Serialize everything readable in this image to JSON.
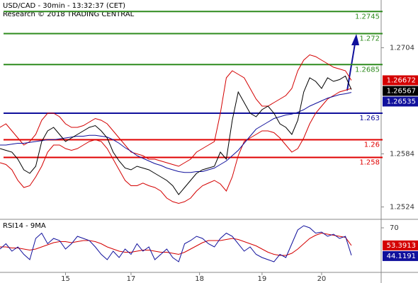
{
  "chart_data": [
    {
      "type": "line",
      "title": "USD/CAD - 30min - 13:32:37 (CET)",
      "subtitle": "Research © 2018 TRADING CENTRAL",
      "x": [
        0,
        1,
        2,
        3,
        4,
        5,
        6,
        7,
        8,
        9,
        10,
        11,
        12,
        13,
        14,
        15,
        16,
        17,
        18,
        19,
        20,
        21,
        22,
        23,
        24,
        25,
        26,
        27,
        28,
        29,
        30,
        31,
        32,
        33,
        34,
        35,
        36,
        37,
        38,
        39,
        40,
        41,
        42,
        43,
        44,
        45,
        46,
        47,
        48,
        49,
        50,
        51,
        52,
        53,
        54,
        55,
        56,
        57,
        58,
        59
      ],
      "xlim": [
        0,
        64
      ],
      "ylim": [
        1.251,
        1.2758
      ],
      "yticks": [
        1.2704,
        1.2584,
        1.2524
      ],
      "series": [
        {
          "color": "#d40000",
          "box": true,
          "values": [
            1.2614,
            1.2618,
            1.261,
            1.2602,
            1.2594,
            1.2598,
            1.2606,
            1.2622,
            1.263,
            1.263,
            1.2626,
            1.2618,
            1.2614,
            1.2614,
            1.2616,
            1.262,
            1.2624,
            1.2622,
            1.2618,
            1.261,
            1.2602,
            1.2594,
            1.2586,
            1.2584,
            1.2582,
            1.2578,
            1.2578,
            1.2576,
            1.2574,
            1.2572,
            1.257,
            1.2574,
            1.2578,
            1.2586,
            1.259,
            1.2594,
            1.2598,
            1.263,
            1.267,
            1.2678,
            1.2674,
            1.267,
            1.2658,
            1.2646,
            1.2638,
            1.2638,
            1.2642,
            1.2646,
            1.265,
            1.2658,
            1.2678,
            1.269,
            1.2696,
            1.2694,
            1.269,
            1.2686,
            1.2682,
            1.268,
            1.2678,
            1.26672
          ]
        },
        {
          "color": "#d40000",
          "values": [
            1.2574,
            1.2572,
            1.2566,
            1.2554,
            1.2546,
            1.2548,
            1.2558,
            1.257,
            1.2586,
            1.2594,
            1.2594,
            1.259,
            1.2588,
            1.259,
            1.2594,
            1.2598,
            1.26,
            1.2598,
            1.259,
            1.2578,
            1.2566,
            1.2554,
            1.2548,
            1.2548,
            1.2551,
            1.2548,
            1.2546,
            1.2542,
            1.2534,
            1.253,
            1.2528,
            1.253,
            1.2534,
            1.2542,
            1.2548,
            1.2551,
            1.2554,
            1.255,
            1.2542,
            1.2558,
            1.2582,
            1.2598,
            1.2602,
            1.2606,
            1.261,
            1.261,
            1.2608,
            1.2602,
            1.2594,
            1.2586,
            1.259,
            1.2602,
            1.2618,
            1.263,
            1.2638,
            1.2646,
            1.265,
            1.2654,
            1.2656,
            1.2658
          ]
        },
        {
          "color": "#10109c",
          "box": true,
          "values": [
            1.2594,
            1.2594,
            1.2595,
            1.2596,
            1.2596,
            1.2597,
            1.2598,
            1.2599,
            1.26,
            1.26,
            1.2601,
            1.2602,
            1.2603,
            1.2604,
            1.2604,
            1.2605,
            1.2605,
            1.2604,
            1.2603,
            1.26,
            1.2596,
            1.2591,
            1.2587,
            1.2582,
            1.2579,
            1.2576,
            1.2573,
            1.2571,
            1.2568,
            1.2566,
            1.2564,
            1.2563,
            1.2563,
            1.2564,
            1.2564,
            1.2566,
            1.2568,
            1.2572,
            1.2576,
            1.2582,
            1.2588,
            1.2596,
            1.2604,
            1.2612,
            1.2616,
            1.262,
            1.2624,
            1.2626,
            1.2628,
            1.2629,
            1.2631,
            1.2634,
            1.2638,
            1.2641,
            1.2644,
            1.2647,
            1.2649,
            1.2651,
            1.2652,
            1.26535
          ]
        },
        {
          "color": "#000000",
          "box": true,
          "values": [
            1.259,
            1.2588,
            1.2586,
            1.2578,
            1.2566,
            1.2562,
            1.257,
            1.2598,
            1.261,
            1.2614,
            1.2606,
            1.2598,
            1.2602,
            1.2606,
            1.261,
            1.2614,
            1.2616,
            1.261,
            1.2602,
            1.2586,
            1.2576,
            1.2568,
            1.2566,
            1.257,
            1.2568,
            1.2566,
            1.2562,
            1.2558,
            1.2554,
            1.2548,
            1.2538,
            1.2546,
            1.2554,
            1.2562,
            1.2566,
            1.2568,
            1.257,
            1.2586,
            1.2578,
            1.2622,
            1.2654,
            1.2642,
            1.263,
            1.2626,
            1.2634,
            1.2638,
            1.263,
            1.2618,
            1.2614,
            1.2606,
            1.2622,
            1.2654,
            1.267,
            1.2666,
            1.2658,
            1.267,
            1.2666,
            1.2668,
            1.2672,
            1.26567
          ]
        }
      ],
      "levels": [
        {
          "value": 1.2745,
          "color": "#2e8b1e"
        },
        {
          "value": 1.272,
          "color": "#2e8b1e"
        },
        {
          "value": 1.2685,
          "color": "#2e8b1e"
        },
        {
          "value": 1.263,
          "color": "#10109c"
        },
        {
          "value": 1.26,
          "color": "#e00000"
        },
        {
          "value": 1.258,
          "color": "#e00000"
        }
      ]
    },
    {
      "type": "line",
      "title": "RSI14 - 9MA",
      "x": [
        0,
        1,
        2,
        3,
        4,
        5,
        6,
        7,
        8,
        9,
        10,
        11,
        12,
        13,
        14,
        15,
        16,
        17,
        18,
        19,
        20,
        21,
        22,
        23,
        24,
        25,
        26,
        27,
        28,
        29,
        30,
        31,
        32,
        33,
        34,
        35,
        36,
        37,
        38,
        39,
        40,
        41,
        42,
        43,
        44,
        45,
        46,
        47,
        48,
        49,
        50,
        51,
        52,
        53,
        54,
        55,
        56,
        57,
        58,
        59
      ],
      "xlim": [
        0,
        64
      ],
      "ylim": [
        28,
        78
      ],
      "yticks": [
        70
      ],
      "xticks": [
        {
          "value": 11,
          "label": "15"
        },
        {
          "value": 22,
          "label": "17"
        },
        {
          "value": 33.5,
          "label": "18"
        },
        {
          "value": 44,
          "label": "19"
        },
        {
          "value": 54,
          "label": "20"
        }
      ],
      "series": [
        {
          "color": "#d40000",
          "box": true,
          "values": [
            52,
            52,
            51,
            51,
            50,
            49,
            50,
            52,
            54,
            56,
            57,
            57,
            56,
            57,
            58,
            58,
            57,
            55,
            52,
            50,
            48,
            47,
            47,
            48,
            49,
            49,
            48,
            47,
            47,
            46,
            45,
            47,
            50,
            53,
            56,
            58,
            58,
            58,
            59,
            60,
            59,
            57,
            55,
            53,
            50,
            47,
            45,
            44,
            44,
            46,
            50,
            55,
            60,
            63,
            65,
            64,
            63,
            62,
            61,
            53.3913
          ]
        },
        {
          "color": "#10109c",
          "box": true,
          "values": [
            50,
            55,
            48,
            52,
            45,
            40,
            60,
            65,
            55,
            60,
            58,
            50,
            55,
            62,
            60,
            58,
            52,
            45,
            40,
            48,
            42,
            50,
            45,
            55,
            48,
            52,
            40,
            45,
            50,
            42,
            38,
            55,
            58,
            62,
            60,
            55,
            52,
            60,
            65,
            62,
            55,
            48,
            52,
            45,
            42,
            40,
            38,
            45,
            42,
            55,
            68,
            72,
            70,
            65,
            66,
            62,
            64,
            60,
            62,
            44.1191
          ]
        }
      ]
    }
  ]
}
